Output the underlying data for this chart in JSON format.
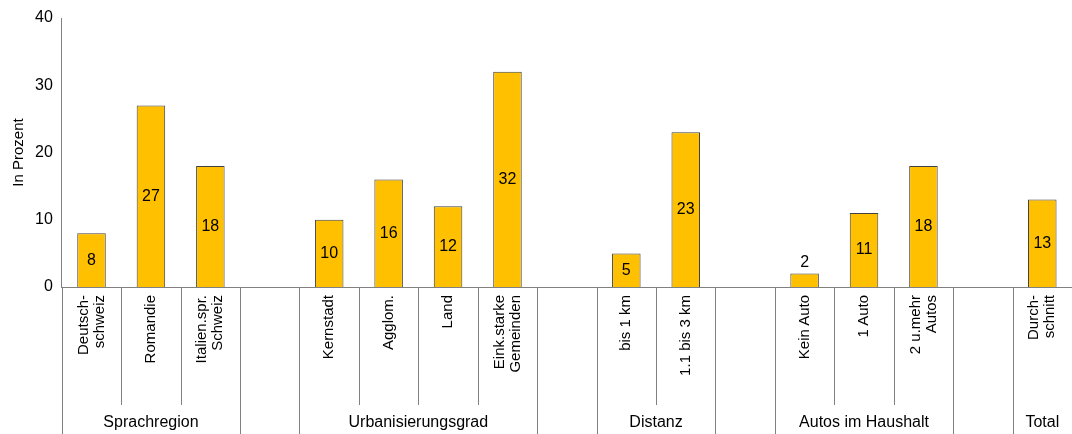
{
  "chart_data": {
    "type": "bar",
    "ylabel": "In Prozent",
    "categories": [
      "Deutsch-\nschweiz",
      "Romandie",
      "Italien.spr.\nSchweiz",
      null,
      "Kernstadt",
      "Agglom.",
      "Land",
      "Eink.starke\nGemeinden",
      null,
      "bis 1 km",
      "1.1 bis 3 km",
      null,
      "Kein Auto",
      "1 Auto",
      "2 u.mehr\nAutos",
      null,
      "Durch-\nschnitt"
    ],
    "values": [
      8,
      27,
      18,
      null,
      10,
      16,
      12,
      32,
      null,
      5,
      23,
      null,
      2,
      11,
      18,
      null,
      13
    ],
    "color": "#ffc000",
    "ylim": [
      0,
      40
    ],
    "yticks": [
      0,
      10,
      20,
      30,
      40
    ],
    "grid": false,
    "legend": false,
    "data_labels": true,
    "annotations": [
      "Sprachregion",
      "Urbanisierungsgrad",
      "Distanz",
      "Autos im Haushalt",
      "Total"
    ]
  }
}
